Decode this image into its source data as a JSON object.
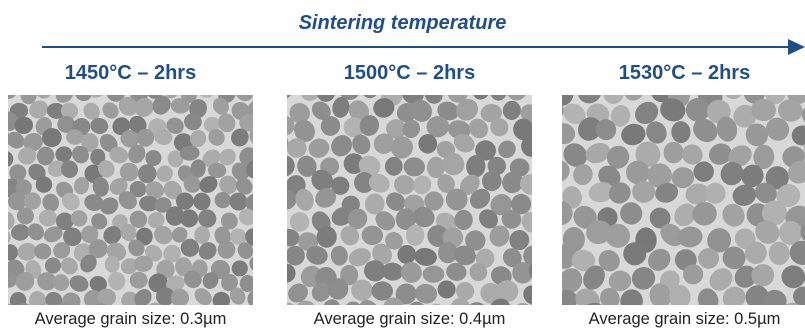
{
  "process": {
    "title": "Sintering temperature"
  },
  "panels": [
    {
      "condition": "1450°C – 2hrs",
      "caption": "Average grain size: 0.3µm",
      "grain_size_um": 0.3
    },
    {
      "condition": "1500°C – 2hrs",
      "caption": "Average grain size: 0.4µm",
      "grain_size_um": 0.4
    },
    {
      "condition": "1530°C – 2hrs",
      "caption": "Average grain size: 0.5µm",
      "grain_size_um": 0.5
    }
  ],
  "colors": {
    "accent": "#1f4e8c",
    "micrograph_base": "#9a9a9a",
    "grain_boundary": "#d8d8d8"
  },
  "icons": {
    "arrow": "right-arrow-icon"
  }
}
